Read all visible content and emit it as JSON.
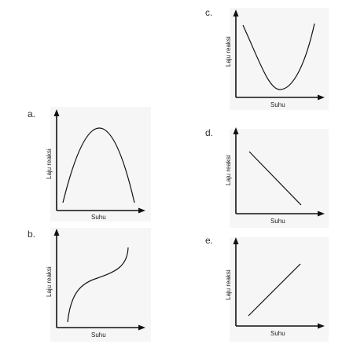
{
  "panels": [
    {
      "id": "a",
      "label": "a.",
      "xlabel": "Suhu",
      "ylabel": "Laju reaksi",
      "shape": "inverted-parabola"
    },
    {
      "id": "b",
      "label": "b.",
      "xlabel": "Suhu",
      "ylabel": "Laju reaksi",
      "shape": "s-curve"
    },
    {
      "id": "c",
      "label": "c.",
      "xlabel": "Suhu",
      "ylabel": "Laju reaksi",
      "shape": "u-parabola"
    },
    {
      "id": "d",
      "label": "d.",
      "xlabel": "Suhu",
      "ylabel": "Laju reaksi",
      "shape": "decreasing-line"
    },
    {
      "id": "e",
      "label": "e.",
      "xlabel": "Suhu",
      "ylabel": "Laju reaksi",
      "shape": "increasing-line"
    }
  ]
}
